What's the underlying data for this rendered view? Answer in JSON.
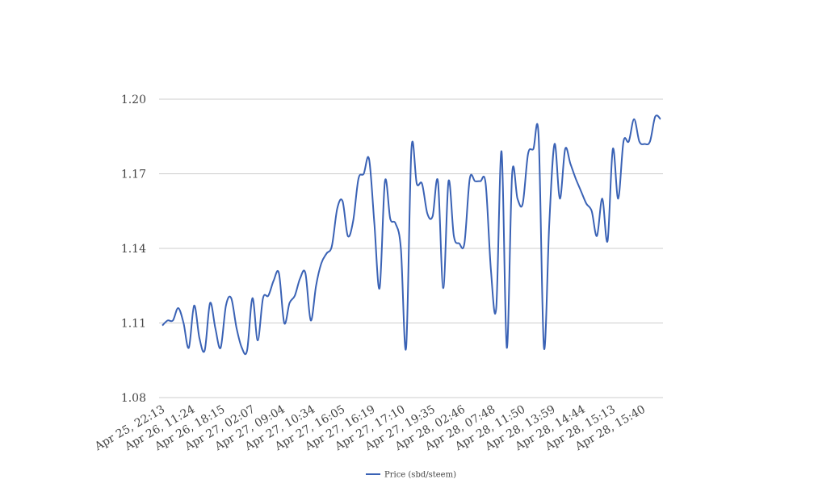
{
  "chart_data": {
    "type": "line",
    "title": "",
    "xlabel": "",
    "ylabel": "",
    "ylim": [
      1.08,
      1.2
    ],
    "y_ticks": [
      "1.08",
      "1.11",
      "1.14",
      "1.17",
      "1.20"
    ],
    "x_tick_labels": [
      "Apr 25, 22:13",
      "Apr 26, 11:24",
      "Apr 26, 18:15",
      "Apr 27, 02:07",
      "Apr 27, 09:04",
      "Apr 27, 10:34",
      "Apr 27, 16:05",
      "Apr 27, 16:19",
      "Apr 27, 17:10",
      "Apr 27, 19:35",
      "Apr 28, 02:46",
      "Apr 28, 07:48",
      "Apr 28, 11:50",
      "Apr 28, 13:59",
      "Apr 28, 14:44",
      "Apr 28, 15:13",
      "Apr 28, 15:40"
    ],
    "grid": "horizontal",
    "legend_position": "bottom",
    "series": [
      {
        "name": "Price (sbd/steem)",
        "color": "#3a62b5",
        "values": [
          1.109,
          1.111,
          1.111,
          1.116,
          1.11,
          1.1,
          1.117,
          1.104,
          1.099,
          1.118,
          1.108,
          1.1,
          1.117,
          1.12,
          1.108,
          1.1,
          1.099,
          1.12,
          1.103,
          1.12,
          1.121,
          1.127,
          1.13,
          1.11,
          1.118,
          1.121,
          1.128,
          1.13,
          1.111,
          1.125,
          1.134,
          1.138,
          1.141,
          1.156,
          1.159,
          1.145,
          1.151,
          1.168,
          1.17,
          1.176,
          1.15,
          1.124,
          1.167,
          1.152,
          1.15,
          1.14,
          1.1,
          1.18,
          1.166,
          1.166,
          1.154,
          1.153,
          1.167,
          1.124,
          1.167,
          1.145,
          1.142,
          1.142,
          1.168,
          1.167,
          1.167,
          1.166,
          1.131,
          1.116,
          1.179,
          1.1,
          1.17,
          1.16,
          1.158,
          1.178,
          1.18,
          1.185,
          1.1,
          1.15,
          1.182,
          1.16,
          1.18,
          1.174,
          1.168,
          1.163,
          1.158,
          1.155,
          1.145,
          1.16,
          1.143,
          1.18,
          1.16,
          1.183,
          1.183,
          1.192,
          1.183,
          1.182,
          1.183,
          1.193,
          1.192
        ]
      }
    ]
  }
}
